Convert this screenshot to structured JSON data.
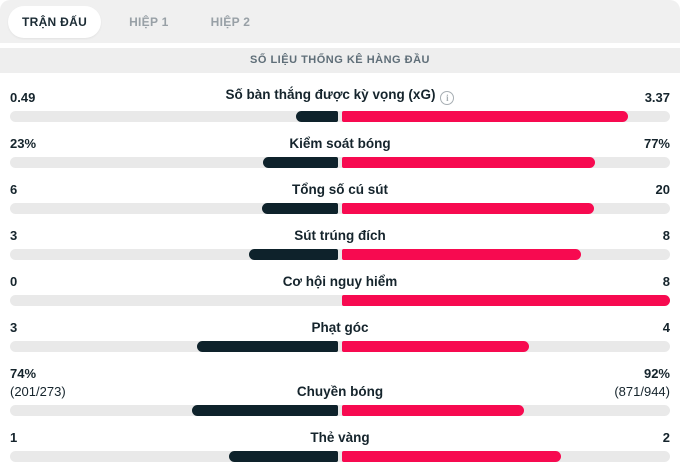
{
  "tabs": [
    {
      "label": "TRẬN ĐẤU",
      "active": true
    },
    {
      "label": "HIỆP 1",
      "active": false
    },
    {
      "label": "HIỆP 2",
      "active": false
    }
  ],
  "section_title": "SỐ LIỆU THỐNG KÊ HÀNG ĐẦU",
  "colors": {
    "home_bar": "#0e222b",
    "away_bar": "#f70a50",
    "track": "#e9e9e9",
    "strip_bg": "#f0f0f0",
    "band_bg": "#eeeeee",
    "band_text": "#5f6e78",
    "tab_active_text": "#1b2b34",
    "tab_inactive_text": "#98a0a6",
    "value_text": "#15242c"
  },
  "chart_data": {
    "type": "bar",
    "title": "SỐ LIỆU THỐNG KÊ HÀNG ĐẦU",
    "rows": [
      {
        "label": "Số bàn thắng được kỳ vọng (xG)",
        "home_display": "0.49",
        "away_display": "3.37",
        "home_value": 0.49,
        "away_value": 3.37,
        "home_detail": "",
        "away_detail": "",
        "has_info": true
      },
      {
        "label": "Kiểm soát bóng",
        "home_display": "23%",
        "away_display": "77%",
        "home_value": 23,
        "away_value": 77,
        "home_detail": "",
        "away_detail": "",
        "has_info": false
      },
      {
        "label": "Tổng số cú sút",
        "home_display": "6",
        "away_display": "20",
        "home_value": 6,
        "away_value": 20,
        "home_detail": "",
        "away_detail": "",
        "has_info": false
      },
      {
        "label": "Sút trúng đích",
        "home_display": "3",
        "away_display": "8",
        "home_value": 3,
        "away_value": 8,
        "home_detail": "",
        "away_detail": "",
        "has_info": false
      },
      {
        "label": "Cơ hội nguy hiểm",
        "home_display": "0",
        "away_display": "8",
        "home_value": 0,
        "away_value": 8,
        "home_detail": "",
        "away_detail": "",
        "has_info": false
      },
      {
        "label": "Phạt góc",
        "home_display": "3",
        "away_display": "4",
        "home_value": 3,
        "away_value": 4,
        "home_detail": "",
        "away_detail": "",
        "has_info": false
      },
      {
        "label": "Chuyền bóng",
        "home_display": "74%",
        "away_display": "92%",
        "home_value": 74,
        "away_value": 92,
        "home_detail": "(201/273)",
        "away_detail": "(871/944)",
        "has_info": false
      },
      {
        "label": "Thẻ vàng",
        "home_display": "1",
        "away_display": "2",
        "home_value": 1,
        "away_value": 2,
        "home_detail": "",
        "away_detail": "",
        "has_info": false
      }
    ]
  },
  "info_icon_glyph": "i"
}
